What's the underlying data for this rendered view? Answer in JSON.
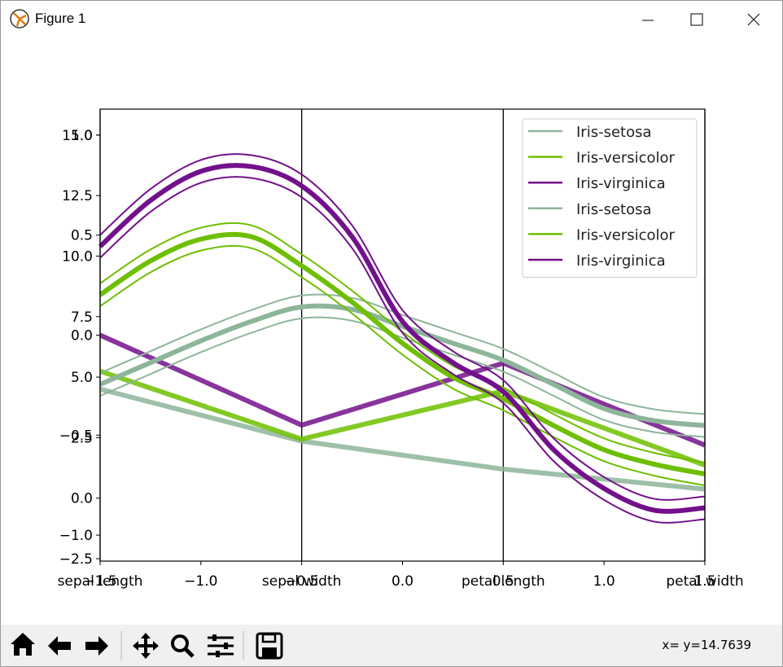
{
  "window": {
    "title": "Figure 1"
  },
  "toolbar": {
    "status": "x= y=14.7639"
  },
  "chart_data": [
    {
      "type": "parallel",
      "categories": [
        "sepal length",
        "sepal width",
        "petal length",
        "petal width"
      ],
      "series": [
        {
          "name": "Iris-setosa",
          "color": "#8db59a",
          "values": [
            -0.27,
            -0.53,
            -0.67,
            -0.77
          ]
        },
        {
          "name": "Iris-versicolor",
          "color": "#6dbf00",
          "values": [
            -0.18,
            -0.52,
            -0.28,
            -0.65
          ]
        },
        {
          "name": "Iris-virginica",
          "color": "#73108b",
          "values": [
            0.0,
            -0.45,
            -0.14,
            -0.55
          ]
        }
      ],
      "ylim": [
        -1.13,
        1.13
      ],
      "yticks": [
        {
          "value": -1.0,
          "label": "−1.0"
        },
        {
          "value": -0.5,
          "label": "−0.5"
        },
        {
          "value": 0.0,
          "label": "0.0"
        },
        0.5,
        {
          "value": 1.0,
          "label": "1.0"
        }
      ],
      "legend": "upper right"
    },
    {
      "type": "andrews",
      "x": [
        -1.5,
        -1.25,
        -1.0,
        -0.75,
        -0.5,
        -0.25,
        0.0,
        0.25,
        0.5,
        0.75,
        1.0,
        1.25,
        1.5
      ],
      "series": [
        {
          "name": "Iris-setosa",
          "color": "#8db59a",
          "values": [
            4.7,
            5.6,
            6.5,
            7.3,
            7.9,
            7.8,
            7.1,
            6.4,
            5.7,
            4.7,
            3.7,
            3.2,
            3.0
          ]
        },
        {
          "name": "Iris-versicolor",
          "color": "#6dbf00",
          "values": [
            8.4,
            9.8,
            10.7,
            10.8,
            9.6,
            8.1,
            6.4,
            5.0,
            4.1,
            3.0,
            2.0,
            1.4,
            1.0
          ]
        },
        {
          "name": "Iris-virginica",
          "color": "#73108b",
          "values": [
            10.4,
            12.3,
            13.5,
            13.7,
            12.9,
            10.8,
            7.3,
            5.6,
            4.4,
            2.0,
            0.4,
            -0.5,
            -0.4
          ]
        }
      ],
      "xlim": [
        -1.5,
        1.5
      ],
      "xticks": [
        {
          "value": -1.5,
          "label": "−1.5"
        },
        {
          "value": -1.0,
          "label": "−1.0"
        },
        {
          "value": -0.5,
          "label": "−0.5"
        },
        {
          "value": 0.0,
          "label": "0.0"
        },
        0.5,
        {
          "value": 1.0,
          "label": "1.0"
        },
        1.5
      ],
      "ylim": [
        -2.6,
        16.07
      ],
      "yticks": [
        {
          "value": -2.5,
          "label": "−2.5"
        },
        {
          "value": 0.0,
          "label": "0.0"
        },
        2.5,
        {
          "value": 5.0,
          "label": "5.0"
        },
        7.5,
        {
          "value": 10.0,
          "label": "10.0"
        },
        12.5,
        {
          "value": 15.0,
          "label": "15.0"
        }
      ],
      "legend": "upper right"
    }
  ]
}
